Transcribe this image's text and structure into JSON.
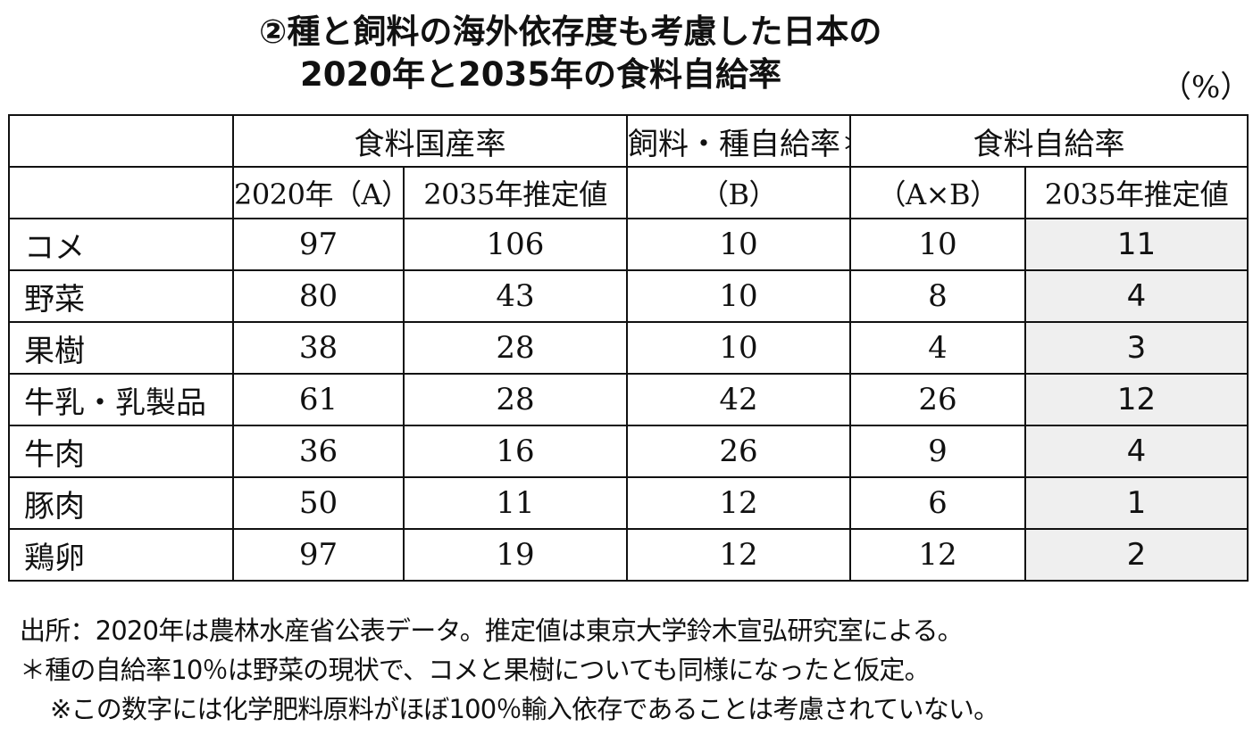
{
  "title": {
    "line1": "②種と飼料の海外依存度も考慮した日本の",
    "line2": "2020年と2035年の食料自給率"
  },
  "unit": "（%）",
  "table": {
    "group_headers": {
      "domestic_rate": "食料国産率",
      "feed_seed_rate": "飼料・種自給率＊",
      "self_sufficiency": "食料自給率"
    },
    "sub_headers": {
      "col1": "2020年（A）",
      "col2": "2035年推定値",
      "col3": "（B）",
      "col4": "（A×B）",
      "col5": "2035年推定値"
    },
    "rows": [
      {
        "label": "コメ",
        "a2020": "97",
        "est2035": "106",
        "b": "10",
        "ab": "10",
        "ss2035": "11"
      },
      {
        "label": "野菜",
        "a2020": "80",
        "est2035": "43",
        "b": "10",
        "ab": "8",
        "ss2035": "4"
      },
      {
        "label": "果樹",
        "a2020": "38",
        "est2035": "28",
        "b": "10",
        "ab": "4",
        "ss2035": "3"
      },
      {
        "label": "牛乳・乳製品",
        "a2020": "61",
        "est2035": "28",
        "b": "42",
        "ab": "26",
        "ss2035": "12"
      },
      {
        "label": "牛肉",
        "a2020": "36",
        "est2035": "16",
        "b": "26",
        "ab": "9",
        "ss2035": "4"
      },
      {
        "label": "豚肉",
        "a2020": "50",
        "est2035": "11",
        "b": "12",
        "ab": "6",
        "ss2035": "1"
      },
      {
        "label": "鶏卵",
        "a2020": "97",
        "est2035": "19",
        "b": "12",
        "ab": "12",
        "ss2035": "2"
      }
    ]
  },
  "notes": {
    "source": "出所：2020年は農林水産省公表データ。推定値は東京大学鈴木宣弘研究室による。",
    "asterisk": "＊種の自給率10％は野菜の現状で、コメと果樹についても同様になったと仮定。",
    "caveat": "※この数字には化学肥料原料がほぼ100％輸入依存であることは考慮されていない。"
  },
  "colors": {
    "shade": "#efefef",
    "border": "#111111"
  }
}
